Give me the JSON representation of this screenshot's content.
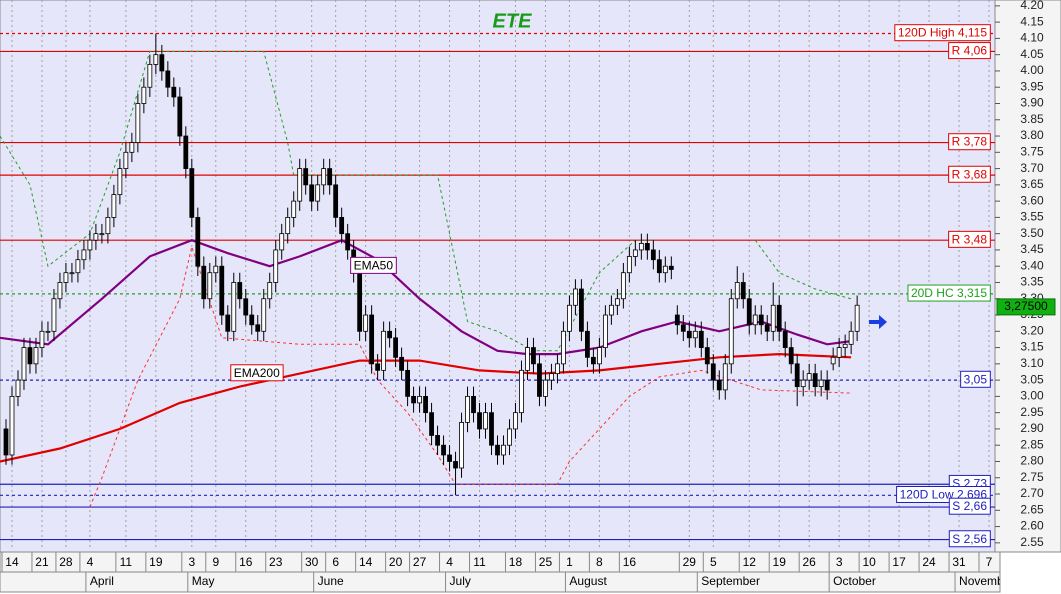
{
  "chart_data": {
    "type": "candlestick",
    "title": "ETE",
    "title_color": "#1a9a1a",
    "ohlc": [
      [
        2.9,
        2.93,
        2.79,
        2.82
      ],
      [
        2.82,
        3.03,
        2.79,
        3.0
      ],
      [
        3.0,
        3.08,
        2.97,
        3.05
      ],
      [
        3.05,
        3.18,
        3.02,
        3.15
      ],
      [
        3.15,
        3.18,
        3.07,
        3.1
      ],
      [
        3.1,
        3.18,
        3.07,
        3.15
      ],
      [
        3.15,
        3.23,
        3.12,
        3.2
      ],
      [
        3.2,
        3.23,
        3.17,
        3.2
      ],
      [
        3.2,
        3.33,
        3.17,
        3.3
      ],
      [
        3.3,
        3.38,
        3.27,
        3.35
      ],
      [
        3.35,
        3.41,
        3.32,
        3.38
      ],
      [
        3.38,
        3.41,
        3.35,
        3.38
      ],
      [
        3.38,
        3.45,
        3.35,
        3.42
      ],
      [
        3.42,
        3.48,
        3.39,
        3.45
      ],
      [
        3.45,
        3.51,
        3.42,
        3.48
      ],
      [
        3.48,
        3.53,
        3.45,
        3.5
      ],
      [
        3.5,
        3.53,
        3.47,
        3.5
      ],
      [
        3.5,
        3.58,
        3.47,
        3.55
      ],
      [
        3.55,
        3.65,
        3.52,
        3.62
      ],
      [
        3.62,
        3.73,
        3.59,
        3.7
      ],
      [
        3.7,
        3.78,
        3.67,
        3.75
      ],
      [
        3.75,
        3.81,
        3.72,
        3.78
      ],
      [
        3.78,
        3.93,
        3.75,
        3.9
      ],
      [
        3.9,
        3.98,
        3.87,
        3.95
      ],
      [
        3.95,
        4.05,
        3.92,
        4.02
      ],
      [
        4.02,
        4.115,
        3.99,
        4.05
      ],
      [
        4.05,
        4.08,
        3.97,
        4.0
      ],
      [
        4.0,
        4.03,
        3.92,
        3.95
      ],
      [
        3.95,
        3.98,
        3.89,
        3.92
      ],
      [
        3.92,
        3.95,
        3.77,
        3.8
      ],
      [
        3.8,
        3.83,
        3.67,
        3.7
      ],
      [
        3.7,
        3.73,
        3.52,
        3.55
      ],
      [
        3.55,
        3.58,
        3.37,
        3.4
      ],
      [
        3.4,
        3.43,
        3.27,
        3.3
      ],
      [
        3.3,
        3.41,
        3.27,
        3.38
      ],
      [
        3.38,
        3.43,
        3.35,
        3.4
      ],
      [
        3.4,
        3.43,
        3.22,
        3.25
      ],
      [
        3.25,
        3.28,
        3.17,
        3.2
      ],
      [
        3.2,
        3.38,
        3.17,
        3.35
      ],
      [
        3.35,
        3.38,
        3.27,
        3.3
      ],
      [
        3.3,
        3.33,
        3.22,
        3.25
      ],
      [
        3.25,
        3.28,
        3.19,
        3.22
      ],
      [
        3.22,
        3.25,
        3.17,
        3.2
      ],
      [
        3.2,
        3.33,
        3.17,
        3.3
      ],
      [
        3.3,
        3.38,
        3.27,
        3.35
      ],
      [
        3.35,
        3.48,
        3.32,
        3.45
      ],
      [
        3.45,
        3.53,
        3.42,
        3.5
      ],
      [
        3.5,
        3.58,
        3.47,
        3.55
      ],
      [
        3.55,
        3.63,
        3.52,
        3.6
      ],
      [
        3.6,
        3.73,
        3.57,
        3.7
      ],
      [
        3.7,
        3.73,
        3.62,
        3.65
      ],
      [
        3.65,
        3.68,
        3.57,
        3.6
      ],
      [
        3.6,
        3.68,
        3.57,
        3.65
      ],
      [
        3.65,
        3.73,
        3.62,
        3.7
      ],
      [
        3.7,
        3.73,
        3.62,
        3.65
      ],
      [
        3.65,
        3.68,
        3.52,
        3.55
      ],
      [
        3.55,
        3.58,
        3.47,
        3.5
      ],
      [
        3.5,
        3.53,
        3.42,
        3.45
      ],
      [
        3.45,
        3.48,
        3.35,
        3.38
      ],
      [
        3.38,
        3.41,
        3.17,
        3.2
      ],
      [
        3.2,
        3.28,
        3.17,
        3.25
      ],
      [
        3.25,
        3.28,
        3.07,
        3.1
      ],
      [
        3.1,
        3.13,
        3.05,
        3.08
      ],
      [
        3.08,
        3.23,
        3.05,
        3.2
      ],
      [
        3.2,
        3.23,
        3.15,
        3.18
      ],
      [
        3.18,
        3.21,
        3.09,
        3.12
      ],
      [
        3.12,
        3.15,
        3.05,
        3.08
      ],
      [
        3.08,
        3.11,
        2.97,
        3.0
      ],
      [
        3.0,
        3.03,
        2.95,
        2.98
      ],
      [
        2.98,
        3.03,
        2.95,
        3.0
      ],
      [
        3.0,
        3.03,
        2.92,
        2.95
      ],
      [
        2.95,
        2.98,
        2.85,
        2.88
      ],
      [
        2.88,
        2.91,
        2.82,
        2.85
      ],
      [
        2.85,
        2.88,
        2.79,
        2.82
      ],
      [
        2.82,
        2.85,
        2.77,
        2.8
      ],
      [
        2.8,
        2.83,
        2.696,
        2.78
      ],
      [
        2.78,
        2.95,
        2.75,
        2.92
      ],
      [
        2.92,
        3.03,
        2.89,
        3.0
      ],
      [
        3.0,
        3.03,
        2.92,
        2.95
      ],
      [
        2.95,
        2.98,
        2.87,
        2.9
      ],
      [
        2.9,
        2.98,
        2.87,
        2.95
      ],
      [
        2.95,
        2.98,
        2.82,
        2.85
      ],
      [
        2.85,
        2.88,
        2.79,
        2.82
      ],
      [
        2.82,
        2.88,
        2.79,
        2.85
      ],
      [
        2.85,
        2.93,
        2.82,
        2.9
      ],
      [
        2.9,
        2.98,
        2.87,
        2.95
      ],
      [
        2.95,
        3.11,
        2.92,
        3.08
      ],
      [
        3.08,
        3.18,
        3.05,
        3.15
      ],
      [
        3.15,
        3.18,
        3.07,
        3.1
      ],
      [
        3.1,
        3.13,
        2.97,
        3.0
      ],
      [
        3.0,
        3.08,
        2.97,
        3.05
      ],
      [
        3.05,
        3.1,
        3.02,
        3.07
      ],
      [
        3.07,
        3.13,
        3.04,
        3.1
      ],
      [
        3.1,
        3.23,
        3.07,
        3.2
      ],
      [
        3.2,
        3.31,
        3.17,
        3.28
      ],
      [
        3.28,
        3.36,
        3.25,
        3.33
      ],
      [
        3.33,
        3.36,
        3.17,
        3.2
      ],
      [
        3.2,
        3.23,
        3.09,
        3.12
      ],
      [
        3.12,
        3.15,
        3.07,
        3.1
      ],
      [
        3.1,
        3.18,
        3.07,
        3.15
      ],
      [
        3.15,
        3.28,
        3.12,
        3.25
      ],
      [
        3.25,
        3.31,
        3.22,
        3.28
      ],
      [
        3.28,
        3.33,
        3.25,
        3.3
      ],
      [
        3.3,
        3.41,
        3.27,
        3.38
      ],
      [
        3.38,
        3.46,
        3.35,
        3.43
      ],
      [
        3.43,
        3.48,
        3.4,
        3.45
      ],
      [
        3.45,
        3.5,
        3.42,
        3.47
      ],
      [
        3.47,
        3.5,
        3.42,
        3.45
      ],
      [
        3.45,
        3.48,
        3.39,
        3.42
      ],
      [
        3.42,
        3.45,
        3.35,
        3.38
      ],
      [
        3.38,
        3.43,
        3.35,
        3.4
      ],
      [
        3.4,
        3.43,
        3.36,
        3.39
      ],
      [
        3.25,
        3.28,
        3.19,
        3.22
      ],
      [
        3.22,
        3.25,
        3.17,
        3.2
      ],
      [
        3.2,
        3.23,
        3.15,
        3.18
      ],
      [
        3.18,
        3.23,
        3.15,
        3.2
      ],
      [
        3.2,
        3.23,
        3.12,
        3.15
      ],
      [
        3.15,
        3.18,
        3.07,
        3.1
      ],
      [
        3.1,
        3.13,
        3.02,
        3.05
      ],
      [
        3.05,
        3.08,
        2.99,
        3.02
      ],
      [
        3.02,
        3.13,
        2.99,
        3.1
      ],
      [
        3.1,
        3.33,
        3.07,
        3.3
      ],
      [
        3.3,
        3.4,
        3.27,
        3.35
      ],
      [
        3.35,
        3.38,
        3.27,
        3.3
      ],
      [
        3.3,
        3.33,
        3.19,
        3.22
      ],
      [
        3.22,
        3.28,
        3.19,
        3.25
      ],
      [
        3.25,
        3.28,
        3.19,
        3.22
      ],
      [
        3.22,
        3.25,
        3.17,
        3.2
      ],
      [
        3.2,
        3.35,
        3.17,
        3.28
      ],
      [
        3.28,
        3.31,
        3.17,
        3.2
      ],
      [
        3.2,
        3.23,
        3.12,
        3.15
      ],
      [
        3.15,
        3.18,
        3.07,
        3.1
      ],
      [
        3.1,
        3.13,
        2.97,
        3.03
      ],
      [
        3.03,
        3.08,
        3.0,
        3.05
      ],
      [
        3.05,
        3.1,
        3.02,
        3.07
      ],
      [
        3.07,
        3.1,
        3.0,
        3.03
      ],
      [
        3.03,
        3.08,
        3.0,
        3.05
      ],
      [
        3.05,
        3.08,
        2.99,
        3.02
      ],
      [
        3.1,
        3.15,
        3.08,
        3.12
      ],
      [
        3.12,
        3.18,
        3.09,
        3.15
      ],
      [
        3.15,
        3.19,
        3.12,
        3.16
      ],
      [
        3.16,
        3.23,
        3.13,
        3.2
      ],
      [
        3.2,
        3.31,
        3.17,
        3.28
      ]
    ],
    "series": [
      {
        "name": "EMA50",
        "color": "#800080",
        "style": "solid",
        "x": [
          -1,
          7,
          16,
          24,
          31,
          37,
          44,
          49,
          56,
          62,
          69,
          76,
          82,
          87,
          92,
          99,
          106,
          112,
          119,
          126,
          132,
          137,
          141
        ],
        "values": [
          3.18,
          3.16,
          3.3,
          3.43,
          3.48,
          3.44,
          3.4,
          3.43,
          3.48,
          3.42,
          3.3,
          3.2,
          3.14,
          3.13,
          3.13,
          3.15,
          3.2,
          3.23,
          3.2,
          3.23,
          3.19,
          3.16,
          3.17
        ]
      },
      {
        "name": "EMA200",
        "color": "#e00000",
        "style": "solid",
        "x": [
          -1,
          9,
          19,
          29,
          39,
          49,
          59,
          69,
          79,
          89,
          99,
          109,
          119,
          129,
          141
        ],
        "values": [
          2.8,
          2.84,
          2.9,
          2.98,
          3.03,
          3.07,
          3.11,
          3.11,
          3.08,
          3.07,
          3.08,
          3.1,
          3.12,
          3.13,
          3.12
        ]
      },
      {
        "color": "#20a020",
        "style": "dotted",
        "x": [
          -1,
          4,
          7,
          14,
          19,
          24,
          43,
          47,
          48,
          54,
          72,
          77,
          82,
          88,
          92,
          99,
          105,
          108,
          110,
          125,
          129,
          135,
          141
        ],
        "values": [
          3.8,
          3.65,
          3.4,
          3.5,
          3.75,
          4.06,
          4.06,
          3.78,
          3.68,
          3.68,
          3.68,
          3.23,
          3.2,
          3.14,
          3.14,
          3.38,
          3.48,
          3.48,
          null,
          3.48,
          3.38,
          3.33,
          3.3
        ]
      },
      {
        "color": "#ff3030",
        "style": "dotted",
        "x": [
          14,
          16,
          22,
          29,
          31,
          36,
          49,
          59,
          62,
          67,
          72,
          75,
          92,
          94,
          99,
          104,
          109,
          116,
          126,
          141
        ],
        "values": [
          2.66,
          2.75,
          3.05,
          3.3,
          3.46,
          3.18,
          3.16,
          3.16,
          3.05,
          2.95,
          2.82,
          2.73,
          2.73,
          2.8,
          2.9,
          3.0,
          3.06,
          3.08,
          3.02,
          3.01
        ]
      }
    ],
    "levels": [
      {
        "value": 4.115,
        "label": "120D High 4,115",
        "color": "#e00000",
        "style": "dotted"
      },
      {
        "value": 4.06,
        "label": "R 4,06",
        "color": "#e00000",
        "style": "solid"
      },
      {
        "value": 3.78,
        "label": "R 3,78",
        "color": "#e00000",
        "style": "solid"
      },
      {
        "value": 3.68,
        "label": "R 3,68",
        "color": "#e00000",
        "style": "solid"
      },
      {
        "value": 3.48,
        "label": "R 3,48",
        "color": "#e00000",
        "style": "solid"
      },
      {
        "value": 3.315,
        "label": "20D HC 3,315",
        "color": "#20a020",
        "style": "dotted"
      },
      {
        "value": 3.05,
        "label": "3,05",
        "color": "#2020c0",
        "style": "dotted"
      },
      {
        "value": 2.73,
        "label": "S 2,73",
        "color": "#2020c0",
        "style": "solid"
      },
      {
        "value": 2.696,
        "label": "120D Low 2,696",
        "color": "#2020c0",
        "style": "dotted"
      },
      {
        "value": 2.66,
        "label": "S 2,66",
        "color": "#2020c0",
        "style": "solid"
      },
      {
        "value": 2.56,
        "label": "S 2,56",
        "color": "#2020c0",
        "style": "solid"
      }
    ],
    "last_price": {
      "value": 3.275,
      "label": "3,27500"
    },
    "ylim": [
      2.528,
      4.218
    ],
    "yticks": [
      {
        "value": 4.2,
        "label": "4.20"
      },
      4.15,
      {
        "value": 4.1,
        "label": "4.10"
      },
      4.05,
      {
        "value": 4.0,
        "label": "4.00"
      },
      3.95,
      {
        "value": 3.9,
        "label": "3.90"
      },
      3.85,
      {
        "value": 3.8,
        "label": "3.80"
      },
      3.75,
      {
        "value": 3.7,
        "label": "3.70"
      },
      3.65,
      {
        "value": 3.6,
        "label": "3.60"
      },
      3.55,
      {
        "value": 3.5,
        "label": "3.50"
      },
      3.45,
      {
        "value": 3.4,
        "label": "3.40"
      },
      3.35,
      {
        "value": 3.3,
        "label": "3.30"
      },
      3.25,
      {
        "value": 3.2,
        "label": "3.20"
      },
      3.15,
      {
        "value": 3.1,
        "label": "3.10"
      },
      3.05,
      {
        "value": 3.0,
        "label": "3.00"
      },
      2.95,
      {
        "value": 2.9,
        "label": "2.90"
      },
      2.85,
      {
        "value": 2.8,
        "label": "2.80"
      },
      2.75,
      {
        "value": 2.7,
        "label": "2.70"
      },
      2.65,
      {
        "value": 2.6,
        "label": "2.60"
      },
      2.55
    ],
    "xlim": [
      -1,
      165
    ],
    "xticks": [
      {
        "value": 1,
        "label": "14"
      },
      {
        "value": 6,
        "label": "21"
      },
      {
        "value": 10,
        "label": "28"
      },
      {
        "value": 14,
        "label": "4"
      },
      {
        "value": 20,
        "label": "11"
      },
      {
        "value": 25,
        "label": "19"
      },
      {
        "value": 31,
        "label": "3"
      },
      {
        "value": 35,
        "label": "9"
      },
      {
        "value": 40,
        "label": "16"
      },
      {
        "value": 45,
        "label": "23"
      },
      {
        "value": 51,
        "label": "30"
      },
      {
        "value": 55,
        "label": "6"
      },
      {
        "value": 60,
        "label": "14"
      },
      {
        "value": 65,
        "label": "20"
      },
      {
        "value": 69,
        "label": "27"
      },
      {
        "value": 74,
        "label": "4"
      },
      {
        "value": 79,
        "label": "11"
      },
      {
        "value": 85,
        "label": "18"
      },
      {
        "value": 90,
        "label": "25"
      },
      {
        "value": 94,
        "label": "1"
      },
      {
        "value": 99,
        "label": "8"
      },
      {
        "value": 104,
        "label": "16"
      },
      {
        "value": 114,
        "label": "29"
      },
      {
        "value": 118,
        "label": "5"
      },
      {
        "value": 124,
        "label": "12"
      },
      {
        "value": 129,
        "label": "19"
      },
      {
        "value": 134,
        "label": "26"
      },
      {
        "value": 139,
        "label": "3"
      },
      {
        "value": 144,
        "label": "10"
      },
      {
        "value": 149,
        "label": "17"
      },
      {
        "value": 154,
        "label": "24"
      },
      {
        "value": 159,
        "label": "31"
      },
      {
        "value": 164,
        "label": "7"
      }
    ],
    "months": [
      {
        "value": 14,
        "label": "April"
      },
      {
        "value": 31,
        "label": "May"
      },
      {
        "value": 52,
        "label": "June"
      },
      {
        "value": 74,
        "label": "July"
      },
      {
        "value": 94,
        "label": "August"
      },
      {
        "value": 116,
        "label": "September"
      },
      {
        "value": 138,
        "label": "October"
      },
      {
        "value": 159,
        "label": "November"
      }
    ],
    "grid": true
  }
}
